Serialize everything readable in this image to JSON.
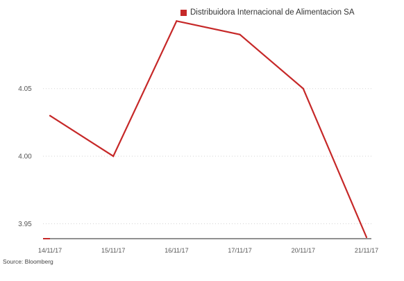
{
  "chart_data": {
    "type": "line",
    "x": [
      "14/11/17",
      "15/11/17",
      "16/11/17",
      "17/11/17",
      "20/11/17",
      "21/11/17"
    ],
    "series": [
      {
        "name": "Distribuidora Internacional de Alimentacion SA",
        "values": [
          4.03,
          4.0,
          4.1,
          4.09,
          4.05,
          3.94
        ],
        "color": "#c62828"
      }
    ],
    "y_ticks": [
      "3.95",
      "4.00",
      "4.05"
    ],
    "ylim": [
      3.94,
      4.105
    ],
    "grid": true,
    "grid_style": "dotted horizontal",
    "legend_position": "top",
    "title": "",
    "xlabel": "",
    "ylabel": ""
  },
  "source": "Source: Bloomberg",
  "colors": {
    "line": "#c62828",
    "grid": "#d4d4d4",
    "axis": "#222222",
    "tick_text": "#555555"
  }
}
